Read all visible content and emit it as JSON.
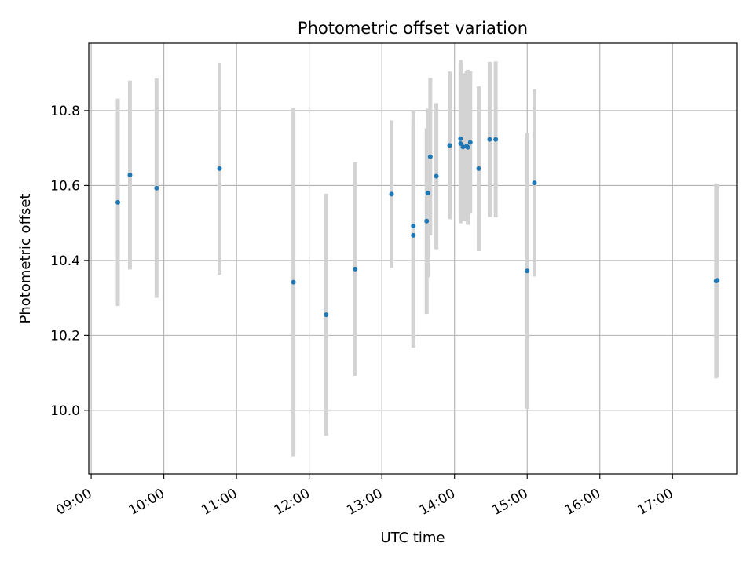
{
  "chart_data": {
    "type": "scatter",
    "title": "Photometric offset variation",
    "xlabel": "UTC time",
    "ylabel": "Photometric offset",
    "x_ticks": [
      "09:00",
      "10:00",
      "11:00",
      "12:00",
      "13:00",
      "14:00",
      "15:00",
      "16:00",
      "17:00"
    ],
    "y_ticks": [
      "10.0",
      "10.2",
      "10.4",
      "10.6",
      "10.8"
    ],
    "xlim": [
      "08:58",
      "17:53"
    ],
    "ylim": [
      9.83,
      10.98
    ],
    "grid": true,
    "colors": {
      "points": "#1f77b4",
      "error_bars": "#d3d3d3",
      "grid": "#b0b0b0"
    },
    "series": [
      {
        "points": [
          {
            "x": "09:22",
            "y": 10.555,
            "yerr": 0.277
          },
          {
            "x": "09:32",
            "y": 10.628,
            "yerr": 0.252
          },
          {
            "x": "09:54",
            "y": 10.593,
            "yerr": 0.293
          },
          {
            "x": "10:46",
            "y": 10.645,
            "yerr": 0.283
          },
          {
            "x": "11:47",
            "y": 10.342,
            "yerr": 0.465
          },
          {
            "x": "12:14",
            "y": 10.255,
            "yerr": 0.323
          },
          {
            "x": "12:38",
            "y": 10.377,
            "yerr": 0.285
          },
          {
            "x": "13:08",
            "y": 10.577,
            "yerr": 0.197
          },
          {
            "x": "13:26",
            "y": 10.492,
            "yerr": 0.308
          },
          {
            "x": "13:26",
            "y": 10.467,
            "yerr": 0.3
          },
          {
            "x": "13:37",
            "y": 10.505,
            "yerr": 0.248
          },
          {
            "x": "13:38",
            "y": 10.58,
            "yerr": 0.225
          },
          {
            "x": "13:40",
            "y": 10.677,
            "yerr": 0.21
          },
          {
            "x": "13:45",
            "y": 10.625,
            "yerr": 0.195
          },
          {
            "x": "13:56",
            "y": 10.707,
            "yerr": 0.197
          },
          {
            "x": "14:05",
            "y": 10.725,
            "yerr": 0.21
          },
          {
            "x": "14:05",
            "y": 10.712,
            "yerr": 0.213
          },
          {
            "x": "14:07",
            "y": 10.703,
            "yerr": 0.197
          },
          {
            "x": "14:10",
            "y": 10.705,
            "yerr": 0.2
          },
          {
            "x": "14:11",
            "y": 10.702,
            "yerr": 0.207
          },
          {
            "x": "14:13",
            "y": 10.715,
            "yerr": 0.19
          },
          {
            "x": "14:20",
            "y": 10.645,
            "yerr": 0.22
          },
          {
            "x": "14:29",
            "y": 10.723,
            "yerr": 0.207
          },
          {
            "x": "14:34",
            "y": 10.723,
            "yerr": 0.208
          },
          {
            "x": "15:00",
            "y": 10.372,
            "yerr": 0.368
          },
          {
            "x": "15:06",
            "y": 10.607,
            "yerr": 0.25
          },
          {
            "x": "17:36",
            "y": 10.345,
            "yerr": 0.26
          },
          {
            "x": "17:37",
            "y": 10.347,
            "yerr": 0.257
          }
        ]
      }
    ]
  }
}
